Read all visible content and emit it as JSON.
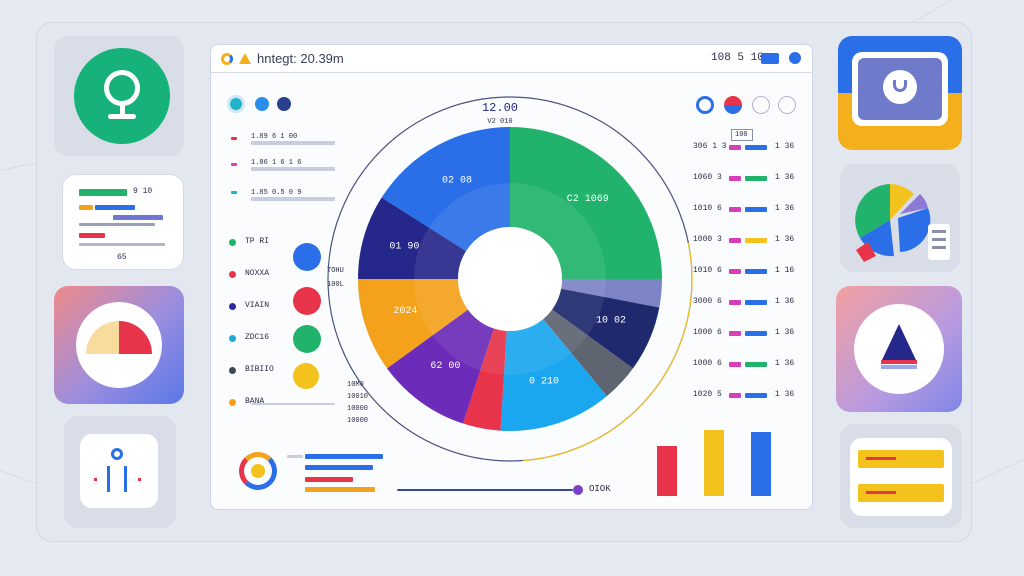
{
  "app": {
    "title": "hntegt: 20.39m",
    "counter": "108 5 10"
  },
  "left_panel": {
    "stat_lines": [
      "1.89 6 1 00",
      "1.86 1 6 1 6",
      "1.85 0.5 0 9"
    ],
    "legend": [
      {
        "label": "TP RI",
        "color": "#21b36b"
      },
      {
        "label": "NOXXA",
        "color": "#e8344a"
      },
      {
        "label": "VIAIN",
        "color": "#2f2a9c"
      },
      {
        "label": "ZDC16",
        "color": "#20a9d3"
      },
      {
        "label": "BIBIIO",
        "color": "#3f4658"
      },
      {
        "label": "BANA",
        "color": "#f4a11c"
      }
    ],
    "side_labels": [
      "TOHU",
      "100L",
      "10M0",
      "10010",
      "10000",
      "10000"
    ]
  },
  "donut": {
    "top_label": "12.00",
    "sub_label": "V2 010",
    "segments": [
      {
        "label": "C2 1069",
        "value": 25,
        "color": "#21b36b"
      },
      {
        "label": "",
        "value": 3,
        "color": "#7c84c6"
      },
      {
        "label": "10 02",
        "value": 7,
        "color": "#1f2a6e"
      },
      {
        "label": "",
        "value": 4,
        "color": "#5e6470"
      },
      {
        "label": "0 210",
        "value": 12,
        "color": "#1aa7ef"
      },
      {
        "label": "",
        "value": 4,
        "color": "#e8344a"
      },
      {
        "label": "62 00",
        "value": 10,
        "color": "#6c2bb8"
      },
      {
        "label": "2024",
        "value": 10,
        "color": "#f4a11c"
      },
      {
        "label": "01 90",
        "value": 9,
        "color": "#25288a"
      },
      {
        "label": "02 08",
        "value": 16,
        "color": "#2a6fe8"
      }
    ]
  },
  "right_list": {
    "rows": [
      {
        "label": "306 1 3",
        "a": "#d63fb8",
        "b": "#2a6fe8",
        "value": "1 36"
      },
      {
        "label": "1060 3",
        "a": "#d63fb8",
        "b": "#21b36b",
        "value": "1 36"
      },
      {
        "label": "1010 6",
        "a": "#d63fb8",
        "b": "#2a6fe8",
        "value": "1 36"
      },
      {
        "label": "1000 3",
        "a": "#d63fb8",
        "b": "#f4c21c",
        "value": "1 36"
      },
      {
        "label": "1010 6",
        "a": "#d63fb8",
        "b": "#2a6fe8",
        "value": "1 16"
      },
      {
        "label": "3000 6",
        "a": "#d63fb8",
        "b": "#2a6fe8",
        "value": "1 36"
      },
      {
        "label": "1000 6",
        "a": "#d63fb8",
        "b": "#2a6fe8",
        "value": "1 36"
      },
      {
        "label": "1000 6",
        "a": "#d63fb8",
        "b": "#21b36b",
        "value": "1 36"
      },
      {
        "label": "1020 5",
        "a": "#d63fb8",
        "b": "#2a6fe8",
        "value": "1 36"
      }
    ],
    "button_label": "100"
  },
  "bottom": {
    "footer_label": "OIOK",
    "bars": [
      {
        "value": 50,
        "color": "#e8344a"
      },
      {
        "value": 66,
        "color": "#f4c21c"
      },
      {
        "value": 64,
        "color": "#2a6fe8"
      }
    ]
  },
  "right_tiles": {
    "yellow_button_1": "",
    "yellow_button_2": ""
  },
  "left_tiles": {
    "mini_value": "65",
    "mini_label": "9 10"
  }
}
